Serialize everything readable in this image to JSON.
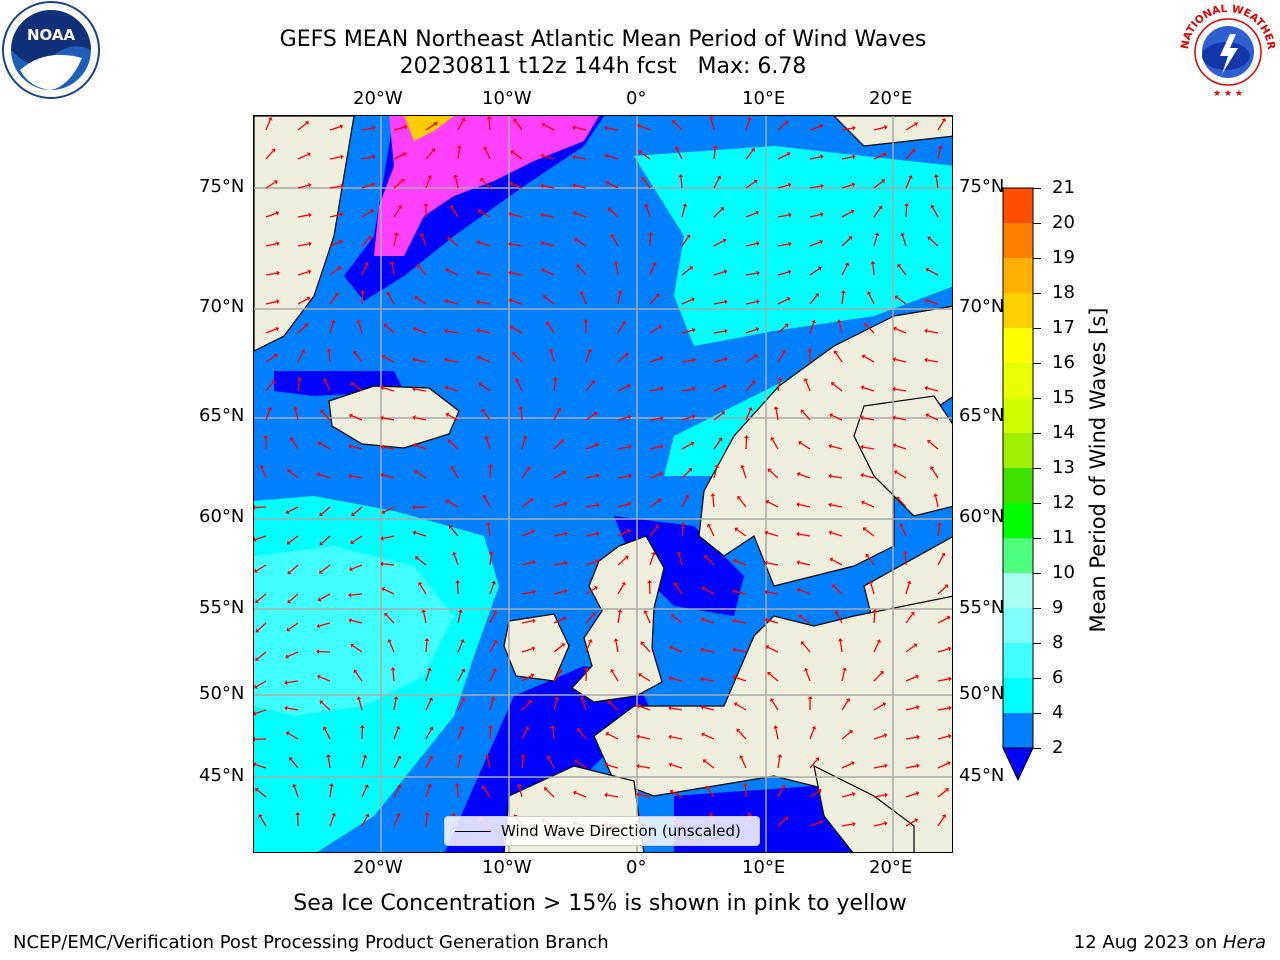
{
  "title": {
    "line1": "GEFS MEAN Northeast Atlantic Mean Period of Wind Waves",
    "line2": "20230811 t12z 144h fcst   Max: 6.78"
  },
  "logos": {
    "left": "NOAA",
    "right_ring_text": "NATIONAL WEATHER SERVICE"
  },
  "map": {
    "lon_labels": [
      "20°W",
      "10°W",
      "0°",
      "10°E",
      "20°E"
    ],
    "lat_labels": [
      "75°N",
      "70°N",
      "65°N",
      "60°N",
      "55°N",
      "50°N",
      "45°N"
    ],
    "legend_label": "Wind Wave Direction (unscaled)",
    "colors": {
      "land": "#eeeedd",
      "ocean_2_4": "#0080ff",
      "ocean_lt2": "#0000ff",
      "ocean_4_6": "#00ffff",
      "ocean_6_8": "#40ffff",
      "sea_ice": "#ff40ff",
      "sea_ice_high": "#ffcc00",
      "arrow": "#ff0000",
      "grid": "#aaaaaa"
    }
  },
  "colorbar": {
    "label": "Mean Period of Wind Waves [s]",
    "ticks": [
      "2",
      "4",
      "6",
      "8",
      "9",
      "10",
      "11",
      "12",
      "13",
      "14",
      "15",
      "16",
      "17",
      "18",
      "19",
      "20",
      "21"
    ],
    "colors": [
      "#0080ff",
      "#00ffff",
      "#40ffff",
      "#80ffff",
      "#a8fff0",
      "#50ff80",
      "#00ff00",
      "#40e000",
      "#a0f000",
      "#d0ff00",
      "#e8ff00",
      "#ffff00",
      "#ffd000",
      "#ffb000",
      "#ff8000",
      "#ff5000",
      "#ff2000",
      "#ff0000"
    ],
    "under_color": "#0000ff"
  },
  "footnote": "Sea Ice Concentration > 15% is shown in pink to yellow",
  "footer": {
    "left": "NCEP/EMC/Verification Post Processing Product Generation Branch",
    "right_prefix": "12 Aug 2023 on ",
    "right_host": "Hera"
  }
}
